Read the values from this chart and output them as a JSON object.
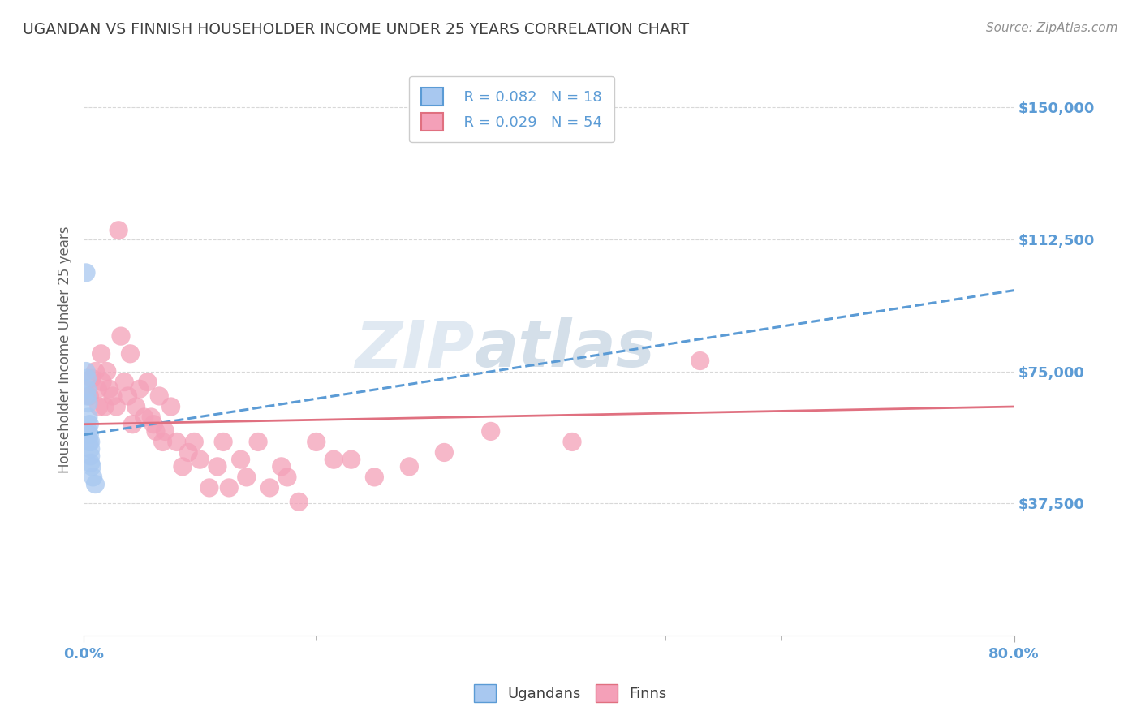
{
  "title": "UGANDAN VS FINNISH HOUSEHOLDER INCOME UNDER 25 YEARS CORRELATION CHART",
  "source": "Source: ZipAtlas.com",
  "ylabel": "Householder Income Under 25 years",
  "xlim": [
    0.0,
    0.8
  ],
  "ylim": [
    0,
    162500
  ],
  "yticks": [
    37500,
    75000,
    112500,
    150000
  ],
  "ytick_labels": [
    "$37,500",
    "$75,000",
    "$112,500",
    "$150,000"
  ],
  "legend_r_uganda": "R = 0.082",
  "legend_n_uganda": "N = 18",
  "legend_r_finn": "R = 0.029",
  "legend_n_finn": "N = 54",
  "uganda_color": "#a8c8f0",
  "finn_color": "#f4a0b8",
  "uganda_line_color": "#5b9bd5",
  "finn_line_color": "#e07080",
  "watermark_zip": "ZIP",
  "watermark_atlas": "atlas",
  "background_color": "#ffffff",
  "grid_color": "#d8d8d8",
  "title_color": "#404040",
  "tick_color": "#5b9bd5",
  "source_color": "#909090",
  "uganda_scatter_x": [
    0.002,
    0.002,
    0.003,
    0.003,
    0.003,
    0.004,
    0.004,
    0.004,
    0.005,
    0.005,
    0.005,
    0.006,
    0.006,
    0.006,
    0.006,
    0.007,
    0.008,
    0.01
  ],
  "uganda_scatter_y": [
    103000,
    75000,
    73000,
    70000,
    68000,
    66000,
    62000,
    58000,
    60000,
    57000,
    55000,
    55000,
    53000,
    51000,
    49000,
    48000,
    45000,
    43000
  ],
  "finn_scatter_x": [
    0.005,
    0.007,
    0.01,
    0.012,
    0.013,
    0.015,
    0.016,
    0.018,
    0.02,
    0.022,
    0.025,
    0.028,
    0.03,
    0.032,
    0.035,
    0.038,
    0.04,
    0.042,
    0.045,
    0.048,
    0.052,
    0.055,
    0.058,
    0.06,
    0.062,
    0.065,
    0.068,
    0.07,
    0.075,
    0.08,
    0.085,
    0.09,
    0.095,
    0.1,
    0.108,
    0.115,
    0.12,
    0.125,
    0.135,
    0.14,
    0.15,
    0.16,
    0.17,
    0.175,
    0.185,
    0.2,
    0.215,
    0.23,
    0.25,
    0.28,
    0.31,
    0.35,
    0.42,
    0.53
  ],
  "finn_scatter_y": [
    68000,
    73000,
    75000,
    70000,
    65000,
    80000,
    72000,
    65000,
    75000,
    70000,
    68000,
    65000,
    115000,
    85000,
    72000,
    68000,
    80000,
    60000,
    65000,
    70000,
    62000,
    72000,
    62000,
    60000,
    58000,
    68000,
    55000,
    58000,
    65000,
    55000,
    48000,
    52000,
    55000,
    50000,
    42000,
    48000,
    55000,
    42000,
    50000,
    45000,
    55000,
    42000,
    48000,
    45000,
    38000,
    55000,
    50000,
    50000,
    45000,
    48000,
    52000,
    58000,
    55000,
    78000
  ],
  "uganda_line_x": [
    0.0,
    0.8
  ],
  "uganda_line_y": [
    57000,
    98000
  ],
  "finn_line_x": [
    0.0,
    0.8
  ],
  "finn_line_y": [
    60000,
    65000
  ]
}
